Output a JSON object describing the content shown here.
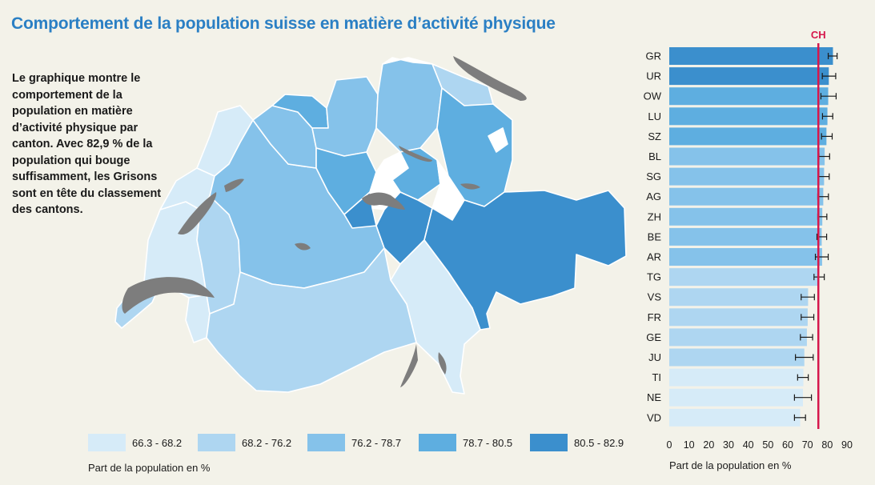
{
  "title": "Comportement de la population suisse en matière d’activité physique",
  "intro": "Le graphique montre le comportement de la population en matière d’activité physique par canton. Avec 82,9 % de la population qui bouge suffisamment, les Grisons sont en tête du classement des cantons.",
  "colors": {
    "background": "#f3f2e9",
    "title": "#2a7fc4",
    "ch_line": "#d6174c",
    "lakes": "#7d7d7d",
    "no_data": "#ffffff",
    "bins": [
      "#d6ebf8",
      "#aed6f1",
      "#85c2ea",
      "#5eaee0",
      "#3b8fcd"
    ]
  },
  "legend": {
    "items": [
      {
        "label": "66.3 - 68.2",
        "color": "#d6ebf8"
      },
      {
        "label": "68.2 - 76.2",
        "color": "#aed6f1"
      },
      {
        "label": "76.2 - 78.7",
        "color": "#85c2ea"
      },
      {
        "label": "78.7 - 80.5",
        "color": "#5eaee0"
      },
      {
        "label": "80.5 - 82.9",
        "color": "#3b8fcd"
      }
    ],
    "caption": "Part de la population en %"
  },
  "chart_data": {
    "type": "bar",
    "orientation": "horizontal",
    "categories": [
      "GR",
      "UR",
      "OW",
      "LU",
      "SZ",
      "BL",
      "SG",
      "AG",
      "ZH",
      "BE",
      "AR",
      "TG",
      "VS",
      "FR",
      "GE",
      "JU",
      "TI",
      "NE",
      "VD"
    ],
    "values": [
      82.9,
      80.8,
      80.5,
      80.1,
      79.6,
      78.7,
      78.4,
      78.0,
      77.5,
      77.2,
      77.4,
      76.0,
      70.3,
      70.1,
      69.7,
      68.4,
      67.9,
      67.7,
      66.3
    ],
    "error_low": [
      80.5,
      77.5,
      76.8,
      77.6,
      77.1,
      75.8,
      75.6,
      75.2,
      75.2,
      74.8,
      74.0,
      73.3,
      66.8,
      66.8,
      66.4,
      63.9,
      65.0,
      63.4,
      63.4
    ],
    "error_high": [
      85.0,
      84.3,
      84.5,
      82.8,
      82.5,
      81.2,
      81.0,
      80.6,
      79.8,
      79.7,
      80.5,
      78.5,
      73.5,
      73.2,
      72.6,
      72.9,
      70.4,
      72.0,
      69.0
    ],
    "reference": {
      "label": "CH",
      "value": 75.5
    },
    "xticks": [
      0,
      10,
      20,
      30,
      40,
      50,
      60,
      70,
      80,
      90
    ],
    "xlim": [
      0,
      90
    ],
    "xlabel": "Part de la population en %",
    "grid": false
  }
}
